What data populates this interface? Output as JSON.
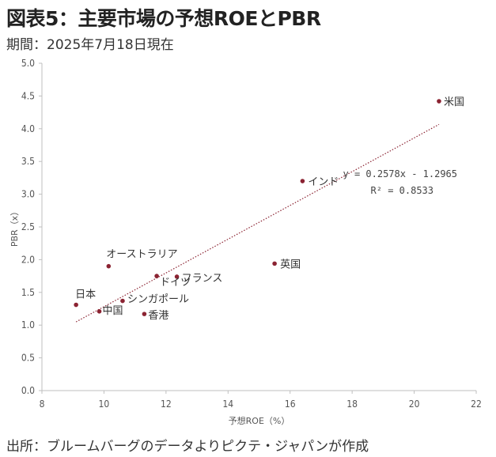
{
  "header": {
    "title": "図表5：主要市場の予想ROEとPBR",
    "subtitle": "期間：2025年7月18日現在"
  },
  "footer": {
    "source": "出所：ブルームバーグのデータよりピクテ・ジャパンが作成"
  },
  "chart_data": {
    "type": "scatter",
    "xlabel": "予想ROE（%）",
    "ylabel": "PBR（x）",
    "xlim": [
      8,
      22
    ],
    "ylim": [
      0.0,
      5.0
    ],
    "x_ticks": [
      "8",
      "10",
      "12",
      "14",
      "16",
      "18",
      "20",
      "22"
    ],
    "y_ticks": [
      "0.0",
      "0.5",
      "1.0",
      "1.5",
      "2.0",
      "2.5",
      "3.0",
      "3.5",
      "4.0",
      "4.5",
      "5.0"
    ],
    "grid": false,
    "marker_color": "#8b2332",
    "trendline_color": "#8b2332",
    "points": [
      {
        "label": "米国",
        "x": 20.8,
        "y": 4.42
      },
      {
        "label": "インド",
        "x": 16.4,
        "y": 3.2
      },
      {
        "label": "英国",
        "x": 15.5,
        "y": 1.94
      },
      {
        "label": "オーストラリア",
        "x": 10.15,
        "y": 1.9
      },
      {
        "label": "ドイツ",
        "x": 11.7,
        "y": 1.75
      },
      {
        "label": "フランス",
        "x": 12.35,
        "y": 1.74
      },
      {
        "label": "日本",
        "x": 9.1,
        "y": 1.31
      },
      {
        "label": "シンガポール",
        "x": 10.6,
        "y": 1.37
      },
      {
        "label": "中国",
        "x": 9.85,
        "y": 1.21
      },
      {
        "label": "香港",
        "x": 11.3,
        "y": 1.17
      }
    ],
    "trendline": {
      "type": "linear",
      "slope": 0.2578,
      "intercept": -1.2965,
      "x_range": [
        9.1,
        20.8
      ],
      "equation": "y = 0.2578x - 1.2965",
      "r_squared": "R² = 0.8533"
    }
  }
}
